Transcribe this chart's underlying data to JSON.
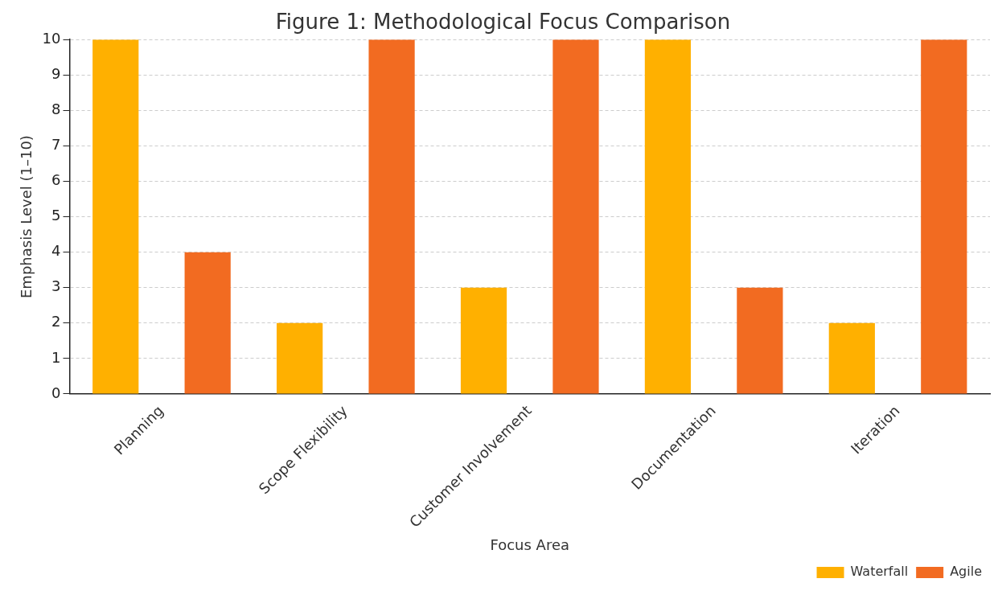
{
  "chart_data": {
    "type": "bar",
    "title": "Figure 1: Methodological Focus Comparison",
    "xlabel": "Focus Area",
    "ylabel": "Emphasis Level (1–10)",
    "categories": [
      "Planning",
      "Scope Flexibility",
      "Customer Involvement",
      "Documentation",
      "Iteration"
    ],
    "series": [
      {
        "name": "Waterfall",
        "color": "#ffb000",
        "values": [
          10,
          2,
          3,
          10,
          2
        ]
      },
      {
        "name": "Agile",
        "color": "#f26b21",
        "values": [
          4,
          10,
          10,
          3,
          10
        ]
      }
    ],
    "ylim": [
      0,
      10
    ],
    "yticks": [
      0,
      1,
      2,
      3,
      4,
      5,
      6,
      7,
      8,
      9,
      10
    ],
    "grid": "y",
    "legend": "bottom right"
  }
}
